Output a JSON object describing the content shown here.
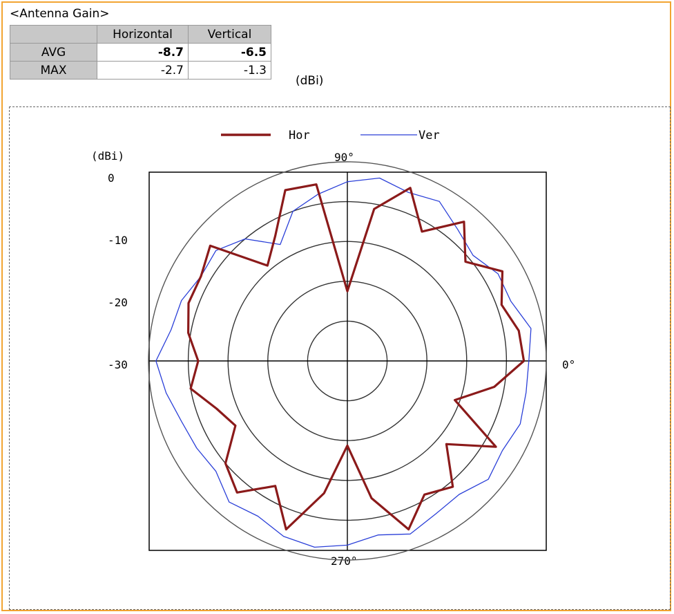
{
  "gain_table": {
    "title": "<Antenna Gain>",
    "headers": [
      "Horizontal",
      "Vertical"
    ],
    "rows": [
      {
        "label": "AVG",
        "horizontal": "-8.7",
        "vertical": "-6.5"
      },
      {
        "label": "MAX",
        "horizontal": "-2.7",
        "vertical": "-1.3"
      }
    ],
    "unit": "(dBi)"
  },
  "chart_data": {
    "type": "polar-line",
    "title": "",
    "radial_axis_label": "(dBi)",
    "radial_ticks": [
      "0",
      "-10",
      "-20",
      "-30"
    ],
    "radial_range": [
      -40,
      0
    ],
    "angle_labels": [
      "90°",
      "0°",
      "270°"
    ],
    "grid": true,
    "legend_position": "top",
    "colors": {
      "Hor": "#8b1a1a",
      "Ver": "#2a3fd8"
    },
    "series": [
      {
        "name": "Hor",
        "angles_deg": [
          0,
          10,
          20,
          30,
          40,
          50,
          60,
          70,
          80,
          90,
          100,
          110,
          120,
          130,
          140,
          150,
          160,
          170,
          180,
          190,
          200,
          210,
          220,
          230,
          240,
          250,
          260,
          270,
          280,
          290,
          300,
          310,
          320,
          330,
          340,
          350
        ],
        "values_dbi": [
          -4.5,
          -5,
          -7,
          -4,
          -9,
          -3.5,
          -10,
          -3,
          -9,
          -26,
          -4,
          -3.5,
          -11,
          -15,
          -4,
          -6,
          -6,
          -7.5,
          -10,
          -8,
          -12,
          -14,
          -8,
          -5.5,
          -11,
          -4,
          -13,
          -23,
          -12,
          -4,
          -9,
          -7,
          -14,
          -5.5,
          -17,
          -10
        ]
      },
      {
        "name": "Ver",
        "angles_deg": [
          0,
          10,
          20,
          30,
          40,
          50,
          60,
          70,
          80,
          90,
          100,
          110,
          120,
          130,
          140,
          150,
          160,
          170,
          180,
          190,
          200,
          210,
          220,
          230,
          240,
          250,
          260,
          270,
          280,
          290,
          300,
          310,
          320,
          330,
          340,
          350
        ],
        "values_dbi": [
          -3.5,
          -2.5,
          -5,
          -5,
          -7,
          -5.5,
          -3,
          -4,
          -2.7,
          -4,
          -6,
          -8,
          -13,
          -8,
          -5.5,
          -6,
          -4.5,
          -4,
          -1.5,
          -3,
          -4.5,
          -5,
          -5.5,
          -3,
          -4,
          -2.5,
          -2,
          -3,
          -4.5,
          -3,
          -4.5,
          -5,
          -3,
          -4,
          -3,
          -3.5
        ]
      }
    ]
  }
}
